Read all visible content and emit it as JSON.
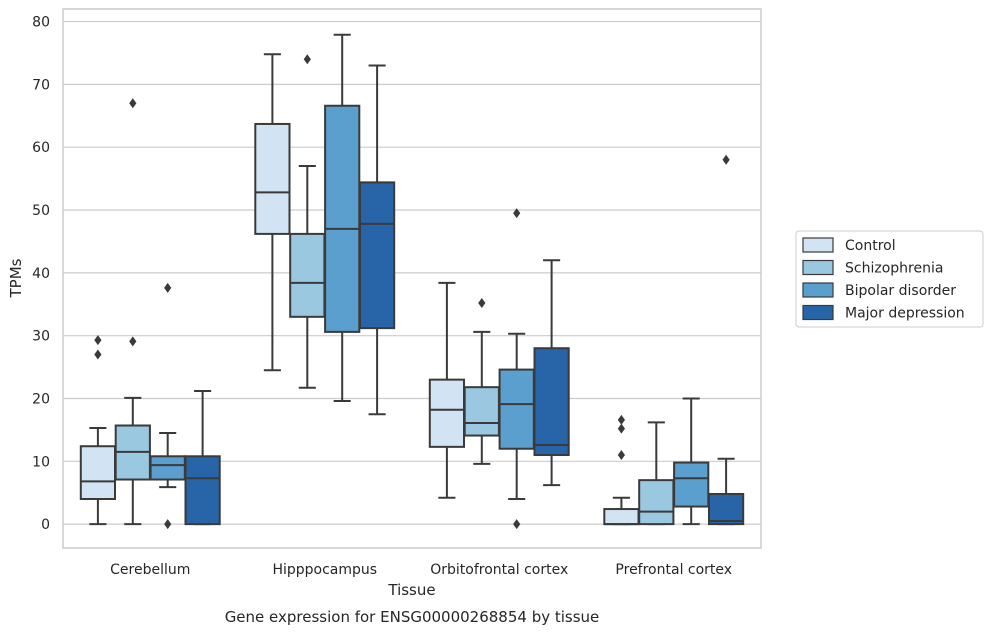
{
  "chart_data": {
    "type": "boxplot",
    "xlabel": "Tissue",
    "ylabel": "TPMs",
    "caption": "Gene expression for ENSG00000268854 by tissue",
    "ylim": [
      -3.8,
      82
    ],
    "yticks": [
      0,
      10,
      20,
      30,
      40,
      50,
      60,
      70,
      80
    ],
    "grid": "horizontal",
    "legend_position": "right, outside",
    "categories": [
      "Cerebellum",
      "Hipppocampus",
      "Orbitofrontal cortex",
      "Prefrontal cortex"
    ],
    "series": [
      {
        "name": "Control",
        "color": "#d2e3f3",
        "boxes": [
          {
            "whislo": 0,
            "q1": 4,
            "med": 6.8,
            "q3": 12.4,
            "whishi": 15.3,
            "fliers": [
              27,
              29.3
            ]
          },
          {
            "whislo": 24.5,
            "q1": 46.2,
            "med": 52.8,
            "q3": 63.7,
            "whishi": 74.8,
            "fliers": []
          },
          {
            "whislo": 4.2,
            "q1": 12.3,
            "med": 18.2,
            "q3": 23,
            "whishi": 38.4,
            "fliers": []
          },
          {
            "whislo": 0,
            "q1": 0,
            "med": 0,
            "q3": 2.4,
            "whishi": 4.2,
            "fliers": [
              11,
              15.2,
              16.6
            ]
          }
        ]
      },
      {
        "name": "Schizophrenia",
        "color": "#9ac8e0",
        "boxes": [
          {
            "whislo": 0,
            "q1": 7.1,
            "med": 11.5,
            "q3": 15.7,
            "whishi": 20.1,
            "fliers": [
              29.1,
              67
            ]
          },
          {
            "whislo": 21.7,
            "q1": 33,
            "med": 38.4,
            "q3": 46.2,
            "whishi": 57,
            "fliers": [
              74
            ]
          },
          {
            "whislo": 9.6,
            "q1": 14.1,
            "med": 16.1,
            "q3": 21.8,
            "whishi": 30.6,
            "fliers": [
              35.2
            ]
          },
          {
            "whislo": 0,
            "q1": 0,
            "med": 2,
            "q3": 7,
            "whishi": 16.2,
            "fliers": []
          }
        ]
      },
      {
        "name": "Bipolar disorder",
        "color": "#5a9fcd",
        "boxes": [
          {
            "whislo": 5.9,
            "q1": 7.1,
            "med": 9.4,
            "q3": 10.8,
            "whishi": 14.5,
            "fliers": [
              0,
              37.6
            ]
          },
          {
            "whislo": 19.6,
            "q1": 30.6,
            "med": 47,
            "q3": 66.6,
            "whishi": 77.9,
            "fliers": []
          },
          {
            "whislo": 4,
            "q1": 12,
            "med": 19.1,
            "q3": 24.6,
            "whishi": 30.3,
            "fliers": [
              0,
              49.5
            ]
          },
          {
            "whislo": 0,
            "q1": 2.8,
            "med": 7.3,
            "q3": 9.8,
            "whishi": 20,
            "fliers": []
          }
        ]
      },
      {
        "name": "Major depression",
        "color": "#2864a8",
        "boxes": [
          {
            "whislo": 0,
            "q1": 0,
            "med": 7.3,
            "q3": 10.8,
            "whishi": 21.2,
            "fliers": []
          },
          {
            "whislo": 17.5,
            "q1": 31.2,
            "med": 47.8,
            "q3": 54.4,
            "whishi": 73,
            "fliers": []
          },
          {
            "whislo": 6.2,
            "q1": 11,
            "med": 12.6,
            "q3": 28,
            "whishi": 42,
            "fliers": []
          },
          {
            "whislo": 0,
            "q1": 0,
            "med": 0.5,
            "q3": 4.8,
            "whishi": 10.4,
            "fliers": [
              58
            ]
          }
        ]
      }
    ]
  }
}
